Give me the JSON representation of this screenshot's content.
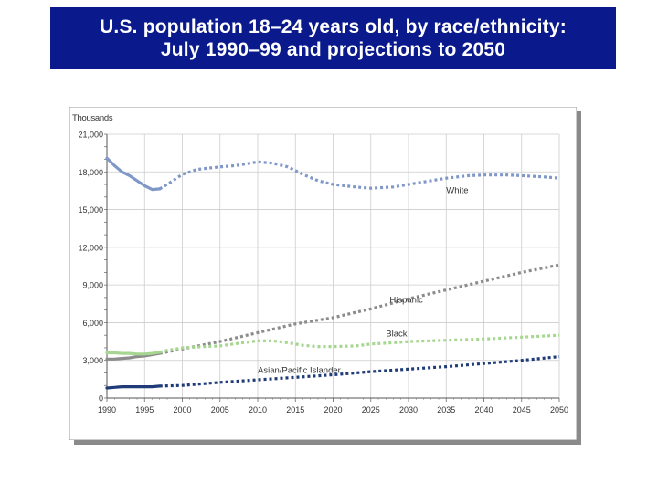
{
  "title": {
    "line1": "U.S. population 18–24 years old, by race/ethnicity:",
    "line2": "July 1990–99 and projections to 2050"
  },
  "colors": {
    "title_bg": "#0a1a8c",
    "white": "#7f98c8",
    "hispanic": "#8c8c8c",
    "black": "#a6d68f",
    "asian": "#1f3c78",
    "grid": "#cccccc"
  },
  "chart_data": {
    "type": "line",
    "ylabel": "Thousands",
    "xlim": [
      1990,
      2050
    ],
    "ylim": [
      0,
      21000
    ],
    "xticks": [
      1990,
      1995,
      2000,
      2005,
      2010,
      2015,
      2020,
      2025,
      2030,
      2035,
      2040,
      2045,
      2050
    ],
    "xtick_labels": [
      "1990",
      "1995",
      "2000",
      "2005",
      "2010",
      "2015",
      "2020",
      "2025",
      "2030",
      "2035",
      "2040",
      "2045",
      "2050"
    ],
    "yticks": [
      0,
      3000,
      6000,
      9000,
      12000,
      15000,
      18000,
      21000
    ],
    "ytick_labels": [
      "0",
      "3,000",
      "6,000",
      "9,000",
      "12,000",
      "15,000",
      "18,000",
      "21,000"
    ],
    "grid": true,
    "solid_through": 1997,
    "series": [
      {
        "name": "White",
        "color_key": "white",
        "points": [
          [
            1990,
            19100
          ],
          [
            1991,
            18500
          ],
          [
            1992,
            18000
          ],
          [
            1993,
            17700
          ],
          [
            1994,
            17300
          ],
          [
            1995,
            16900
          ],
          [
            1996,
            16600
          ],
          [
            1997,
            16650
          ],
          [
            1998,
            17000
          ],
          [
            1999,
            17400
          ],
          [
            2000,
            17800
          ],
          [
            2002,
            18200
          ],
          [
            2005,
            18400
          ],
          [
            2007,
            18500
          ],
          [
            2010,
            18800
          ],
          [
            2012,
            18700
          ],
          [
            2014,
            18400
          ],
          [
            2016,
            17800
          ],
          [
            2018,
            17300
          ],
          [
            2020,
            17000
          ],
          [
            2023,
            16800
          ],
          [
            2025,
            16700
          ],
          [
            2028,
            16800
          ],
          [
            2030,
            17000
          ],
          [
            2033,
            17300
          ],
          [
            2035,
            17500
          ],
          [
            2038,
            17700
          ],
          [
            2040,
            17750
          ],
          [
            2043,
            17750
          ],
          [
            2045,
            17700
          ],
          [
            2048,
            17600
          ],
          [
            2050,
            17500
          ]
        ]
      },
      {
        "name": "Hispanic",
        "color_key": "hispanic",
        "points": [
          [
            1990,
            3100
          ],
          [
            1991,
            3100
          ],
          [
            1992,
            3150
          ],
          [
            1993,
            3200
          ],
          [
            1994,
            3300
          ],
          [
            1995,
            3350
          ],
          [
            1996,
            3450
          ],
          [
            1997,
            3550
          ],
          [
            2000,
            3900
          ],
          [
            2005,
            4500
          ],
          [
            2010,
            5200
          ],
          [
            2015,
            5900
          ],
          [
            2020,
            6400
          ],
          [
            2025,
            7100
          ],
          [
            2030,
            7900
          ],
          [
            2035,
            8600
          ],
          [
            2040,
            9300
          ],
          [
            2045,
            10000
          ],
          [
            2050,
            10600
          ]
        ]
      },
      {
        "name": "Black",
        "color_key": "black",
        "points": [
          [
            1990,
            3600
          ],
          [
            1991,
            3600
          ],
          [
            1992,
            3550
          ],
          [
            1993,
            3550
          ],
          [
            1994,
            3500
          ],
          [
            1995,
            3500
          ],
          [
            1996,
            3550
          ],
          [
            1997,
            3650
          ],
          [
            1998,
            3800
          ],
          [
            2000,
            4000
          ],
          [
            2003,
            4100
          ],
          [
            2005,
            4150
          ],
          [
            2008,
            4400
          ],
          [
            2010,
            4550
          ],
          [
            2012,
            4550
          ],
          [
            2014,
            4400
          ],
          [
            2016,
            4200
          ],
          [
            2018,
            4100
          ],
          [
            2020,
            4100
          ],
          [
            2023,
            4150
          ],
          [
            2025,
            4300
          ],
          [
            2028,
            4400
          ],
          [
            2030,
            4500
          ],
          [
            2035,
            4600
          ],
          [
            2040,
            4700
          ],
          [
            2045,
            4850
          ],
          [
            2050,
            5000
          ]
        ]
      },
      {
        "name": "Asian/Pacific Islander",
        "color_key": "asian",
        "points": [
          [
            1990,
            800
          ],
          [
            1991,
            850
          ],
          [
            1992,
            900
          ],
          [
            1993,
            900
          ],
          [
            1994,
            900
          ],
          [
            1995,
            900
          ],
          [
            1996,
            900
          ],
          [
            1997,
            950
          ],
          [
            2000,
            1000
          ],
          [
            2005,
            1250
          ],
          [
            2010,
            1450
          ],
          [
            2015,
            1650
          ],
          [
            2020,
            1850
          ],
          [
            2025,
            2100
          ],
          [
            2030,
            2300
          ],
          [
            2035,
            2500
          ],
          [
            2040,
            2750
          ],
          [
            2045,
            3000
          ],
          [
            2050,
            3300
          ]
        ]
      }
    ],
    "annotations": [
      {
        "text": "White",
        "x": 2035,
        "y": 16300
      },
      {
        "text": "Hispanic",
        "x": 2027.5,
        "y": 7600
      },
      {
        "text": "Black",
        "x": 2027,
        "y": 4900
      },
      {
        "text": "Asian/Pacific Islander",
        "x": 2010,
        "y": 2000
      }
    ]
  }
}
